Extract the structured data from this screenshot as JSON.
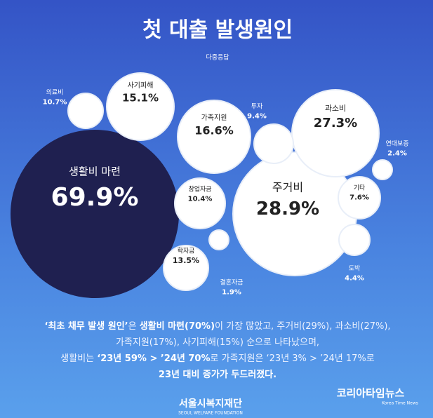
{
  "chart_data": {
    "type": "bubble",
    "title": "첫 대출 발생원인",
    "subtitle": "다중응답",
    "categories": [
      "생활비 마련",
      "주거비",
      "과소비",
      "가족지원",
      "사기피해",
      "학자금",
      "의료비",
      "창업자금",
      "투자",
      "기타",
      "도박",
      "연대보증",
      "결혼자금"
    ],
    "values": [
      69.9,
      28.9,
      27.3,
      16.6,
      15.1,
      13.5,
      10.7,
      10.4,
      9.4,
      7.6,
      4.4,
      2.4,
      1.9
    ],
    "value_labels": [
      "69.9%",
      "28.9%",
      "27.3%",
      "16.6%",
      "15.1%",
      "13.5%",
      "10.7%",
      "10.4%",
      "9.4%",
      "7.6%",
      "4.4%",
      "2.4%",
      "1.9%"
    ],
    "notes": [
      [
        {
          "text": "‘최초 채무 발생 원인’",
          "bold": true
        },
        {
          "text": "은 ",
          "bold": false
        },
        {
          "text": "생활비 마련(70%)",
          "bold": true
        },
        {
          "text": "이 가장 많았고, 주거비(29%), 과소비(27%),",
          "bold": false
        }
      ],
      [
        {
          "text": "가족지원(17%), 사기피해(15%) 순으로 나타났으며,",
          "bold": false
        }
      ],
      [
        {
          "text": "생활비는 ",
          "bold": false
        },
        {
          "text": "‘23년 59% > ’24년 70%",
          "bold": true
        },
        {
          "text": "로 가족지원은 ‘23년 3% > ’24년 17%로",
          "bold": false
        }
      ],
      [
        {
          "text": "23년 대비 증가가 두드러졌다.",
          "bold": true
        }
      ]
    ],
    "footer": {
      "name": "서울시복지재단",
      "name_en": "SEOUL WELFARE FOUNDATION"
    },
    "watermark": {
      "name": "코리아타임뉴스",
      "name_en": "Korea Time News"
    }
  }
}
